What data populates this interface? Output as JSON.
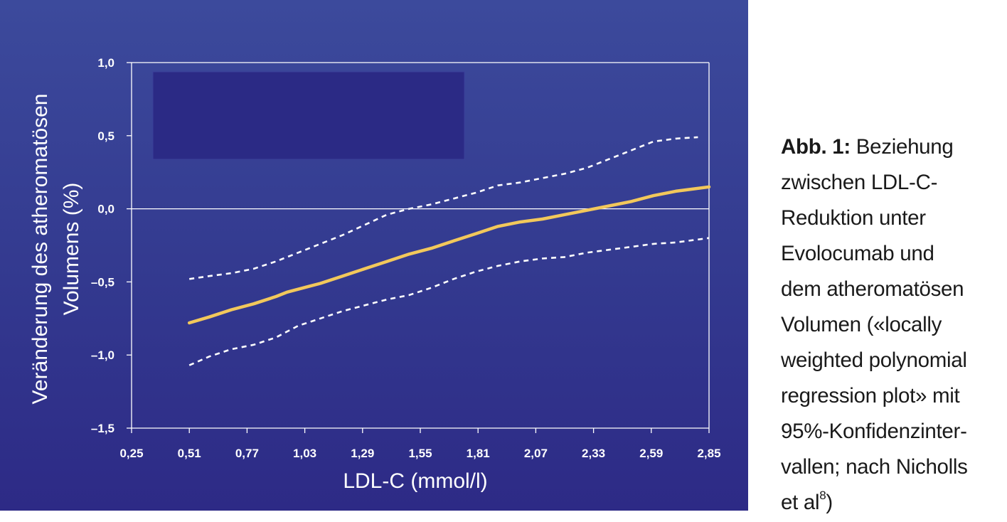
{
  "chart_data": {
    "type": "line",
    "xlabel": "LDL-C (mmol/l)",
    "ylabel_lines": [
      "Veränderung des atheromatösen",
      "Volumens (%)"
    ],
    "x_ticks": [
      "0,25",
      "0,51",
      "0,77",
      "1,03",
      "1,29",
      "1,55",
      "1,81",
      "2,07",
      "2,33",
      "2,59",
      "2,85"
    ],
    "x_tick_values": [
      0.25,
      0.51,
      0.77,
      1.03,
      1.29,
      1.55,
      1.81,
      2.07,
      2.33,
      2.59,
      2.85
    ],
    "y_ticks": [
      "1,0",
      "0,5",
      "0,0",
      "–0,5",
      "–1,0",
      "–1,5"
    ],
    "y_tick_values": [
      1.0,
      0.5,
      0.0,
      -0.5,
      -1.0,
      -1.5
    ],
    "xlim": [
      0.25,
      2.85
    ],
    "ylim": [
      -1.5,
      1.0
    ],
    "reference_line_y": 0.0,
    "grid": false,
    "colors": {
      "fit": "#f2c85b",
      "ci": "#ffffff",
      "frame": "#ffffff",
      "legend_box": "#2b2a85"
    },
    "series": [
      {
        "role": "fit",
        "style": "solid",
        "x": [
          0.51,
          0.6,
          0.7,
          0.8,
          0.9,
          0.95,
          1.0,
          1.05,
          1.1,
          1.2,
          1.3,
          1.4,
          1.5,
          1.6,
          1.7,
          1.8,
          1.9,
          2.0,
          2.1,
          2.2,
          2.3,
          2.4,
          2.5,
          2.6,
          2.7,
          2.75,
          2.85
        ],
        "y": [
          -0.78,
          -0.74,
          -0.69,
          -0.65,
          -0.6,
          -0.57,
          -0.55,
          -0.53,
          -0.51,
          -0.46,
          -0.41,
          -0.36,
          -0.31,
          -0.27,
          -0.22,
          -0.17,
          -0.12,
          -0.09,
          -0.07,
          -0.04,
          -0.01,
          0.02,
          0.05,
          0.09,
          0.12,
          0.13,
          0.15
        ]
      },
      {
        "role": "ci-upper",
        "style": "dashed",
        "x": [
          0.51,
          0.6,
          0.7,
          0.8,
          0.9,
          1.0,
          1.1,
          1.2,
          1.3,
          1.4,
          1.5,
          1.6,
          1.7,
          1.8,
          1.9,
          2.0,
          2.1,
          2.2,
          2.3,
          2.4,
          2.5,
          2.6,
          2.7,
          2.8
        ],
        "y": [
          -0.48,
          -0.46,
          -0.44,
          -0.41,
          -0.36,
          -0.3,
          -0.24,
          -0.18,
          -0.11,
          -0.04,
          0.0,
          0.03,
          0.07,
          0.11,
          0.16,
          0.18,
          0.21,
          0.24,
          0.28,
          0.34,
          0.4,
          0.46,
          0.48,
          0.49
        ]
      },
      {
        "role": "ci-lower",
        "style": "dashed",
        "x": [
          0.51,
          0.6,
          0.7,
          0.8,
          0.9,
          1.0,
          1.1,
          1.2,
          1.3,
          1.4,
          1.5,
          1.6,
          1.7,
          1.8,
          1.9,
          2.0,
          2.1,
          2.2,
          2.3,
          2.4,
          2.5,
          2.6,
          2.7,
          2.85
        ],
        "y": [
          -1.07,
          -1.01,
          -0.96,
          -0.93,
          -0.88,
          -0.8,
          -0.75,
          -0.7,
          -0.66,
          -0.62,
          -0.59,
          -0.54,
          -0.48,
          -0.43,
          -0.39,
          -0.36,
          -0.34,
          -0.33,
          -0.3,
          -0.28,
          -0.26,
          -0.24,
          -0.23,
          -0.2
        ]
      }
    ]
  },
  "caption": {
    "label": "Abb. 1:",
    "lines": [
      " Beziehung",
      "zwischen LDL-C-",
      "Reduktion unter",
      "Evolocumab und",
      "dem atheromatösen",
      "Volumen («locally",
      "weighted polynomial",
      "regression plot» mit",
      "95%-Konfidenzinter-",
      "vallen; nach Nicholls",
      "et al"
    ],
    "ref_sup": "8",
    "closing": ")"
  }
}
